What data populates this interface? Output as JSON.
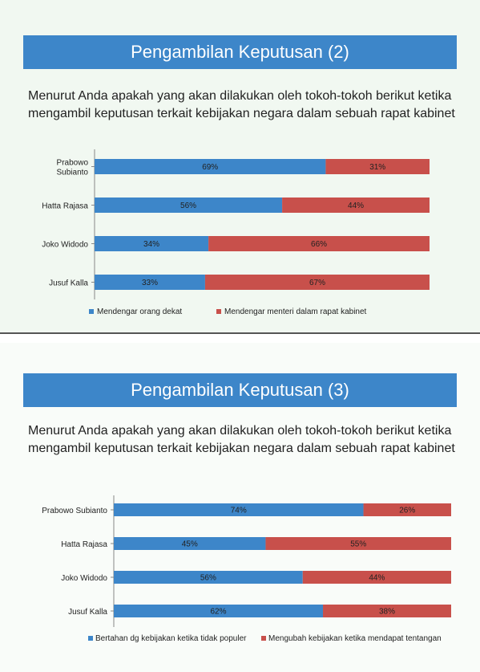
{
  "slides": [
    {
      "title": "Pengambilan Keputusan (2)",
      "question": "Menurut Anda apakah yang akan dilakukan oleh tokoh-tokoh berikut ketika mengambil keputusan terkait kebijakan negara dalam sebuah rapat kabinet"
    },
    {
      "title": "Pengambilan Keputusan (3)",
      "question": "Menurut Anda apakah yang akan dilakukan oleh tokoh-tokoh berikut ketika mengambil keputusan terkait kebijakan negara dalam sebuah rapat kabinet"
    }
  ],
  "chart_data": [
    {
      "type": "bar",
      "orientation": "horizontal",
      "stacked": true,
      "percent": true,
      "categories": [
        [
          "Prabowo",
          "Subianto"
        ],
        [
          "Hatta Rajasa"
        ],
        [
          "Joko Widodo"
        ],
        [
          "Jusuf Kalla"
        ]
      ],
      "series": [
        {
          "name": "Mendengar orang dekat",
          "values": [
            69,
            56,
            34,
            33
          ],
          "color": "#3d86c9"
        },
        {
          "name": "Mendengar menteri dalam rapat kabinet",
          "values": [
            31,
            44,
            66,
            67
          ],
          "color": "#c8504b"
        }
      ],
      "data_labels": [
        [
          "69%",
          "56%",
          "34%",
          "33%"
        ],
        [
          "31%",
          "44%",
          "66%",
          "67%"
        ]
      ],
      "xlim": [
        0,
        100
      ],
      "legend": "bottom"
    },
    {
      "type": "bar",
      "orientation": "horizontal",
      "stacked": true,
      "percent": true,
      "categories": [
        [
          "Prabowo Subianto"
        ],
        [
          "Hatta Rajasa"
        ],
        [
          "Joko Widodo"
        ],
        [
          "Jusuf Kalla"
        ]
      ],
      "series": [
        {
          "name": "Bertahan dg kebijakan ketika tidak populer",
          "values": [
            74,
            45,
            56,
            62
          ],
          "color": "#3d86c9"
        },
        {
          "name": "Mengubah kebijakan ketika mendapat tentangan",
          "values": [
            26,
            55,
            44,
            38
          ],
          "color": "#c8504b"
        }
      ],
      "data_labels": [
        [
          "74%",
          "45%",
          "56%",
          "62%"
        ],
        [
          "26%",
          "55%",
          "44%",
          "38%"
        ]
      ],
      "xlim": [
        0,
        100
      ],
      "legend": "bottom"
    }
  ]
}
